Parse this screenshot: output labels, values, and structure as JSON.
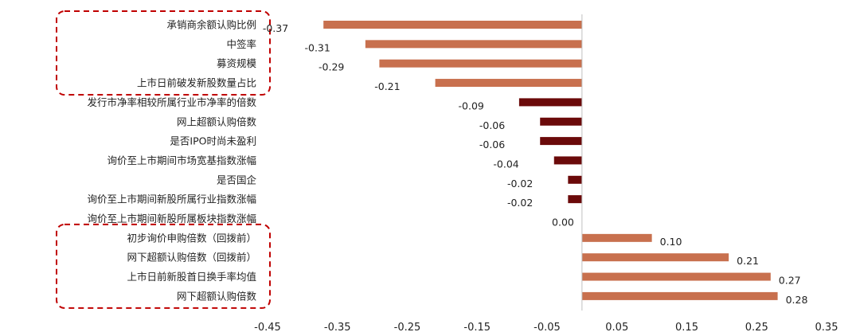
{
  "chart_data": {
    "type": "bar",
    "orientation": "horizontal",
    "title": "",
    "xlabel": "",
    "ylabel": "",
    "xlim": [
      -0.45,
      0.35
    ],
    "x_ticks": [
      "-0.45",
      "-0.35",
      "-0.25",
      "-0.15",
      "-0.05",
      "0.05",
      "0.15",
      "0.25",
      "0.35"
    ],
    "grid": false,
    "categories": [
      "承销商余额认购比例",
      "中签率",
      "募资规模",
      "上市日前破发新股数量占比",
      "发行市净率相较所属行业市净率的倍数",
      "网上超额认购倍数",
      "是否IPO时尚未盈利",
      "询价至上市期间市场宽基指数涨幅",
      "是否国企",
      "询价至上市期间新股所属行业指数涨幅",
      "询价至上市期间新股所属板块指数涨幅",
      "初步询价申购倍数（回拨前）",
      "网下超额认购倍数（回拨前）",
      "上市日前新股首日换手率均值",
      "网下超额认购倍数"
    ],
    "values": [
      -0.37,
      -0.31,
      -0.29,
      -0.21,
      -0.09,
      -0.06,
      -0.06,
      -0.04,
      -0.02,
      -0.02,
      0.0,
      0.1,
      0.21,
      0.27,
      0.28
    ],
    "value_labels": [
      "-0.37",
      "-0.31",
      "-0.29",
      "-0.21",
      "-0.09",
      "-0.06",
      "-0.06",
      "-0.04",
      "-0.02",
      "-0.02",
      "0.00",
      "0.10",
      "0.21",
      "0.27",
      "0.28"
    ],
    "highlighted": [
      true,
      true,
      true,
      true,
      false,
      false,
      false,
      false,
      false,
      false,
      false,
      true,
      true,
      true,
      true
    ],
    "highlight_groups": [
      [
        0,
        3
      ],
      [
        11,
        14
      ]
    ],
    "colors": {
      "highlight_bar": "#c8704e",
      "normal_bar": "#6b0a0a",
      "box_border": "#c00000",
      "axis": "#bfbfbf"
    }
  }
}
